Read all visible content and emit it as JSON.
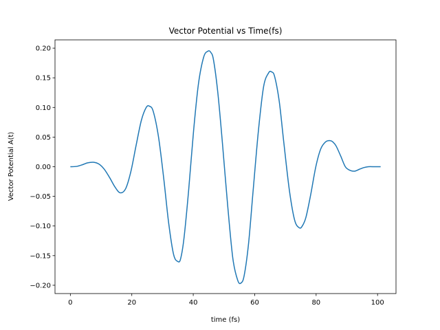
{
  "chart_data": {
    "type": "line",
    "title": "Vector Potential vs Time(fs)",
    "xlabel": "time (fs)",
    "ylabel": "Vector Potential A(t)",
    "xlim": [
      -5,
      106
    ],
    "ylim": [
      -0.214,
      0.214
    ],
    "xticks": [
      0,
      20,
      40,
      60,
      80,
      100
    ],
    "yticks": [
      -0.2,
      -0.15,
      -0.1,
      -0.05,
      0.0,
      0.05,
      0.1,
      0.15,
      0.2
    ],
    "xtick_labels": [
      "0",
      "20",
      "40",
      "60",
      "80",
      "100"
    ],
    "ytick_labels": [
      "−0.20",
      "−0.15",
      "−0.10",
      "−0.05",
      "0.00",
      "0.05",
      "0.10",
      "0.15",
      "0.20"
    ],
    "grid": false,
    "series": [
      {
        "color": "#1f77b4",
        "x": [
          0,
          2,
          4,
          5.6,
          7.5,
          9.3,
          11,
          12.8,
          14.5,
          16.2,
          18,
          19.7,
          21.4,
          23.1,
          24.7,
          25.8,
          27,
          28.7,
          30.4,
          32,
          33.6,
          35,
          35.9,
          37,
          38.5,
          40.1,
          41.7,
          43.4,
          44.8,
          45.7,
          46.6,
          48,
          49.5,
          51.2,
          52.9,
          54.5,
          55.6,
          56.6,
          58,
          59.5,
          61.2,
          62.9,
          64.5,
          65.5,
          66.5,
          68,
          69.5,
          71.3,
          73,
          74.5,
          75.5,
          76.7,
          78.2,
          79.9,
          81.5,
          83.1,
          84.6,
          85.4,
          86.5,
          88,
          89.5,
          91,
          92.5,
          94,
          95.5,
          97,
          99,
          101
        ],
        "y": [
          0.0,
          0.0005,
          0.0035,
          0.0065,
          0.0075,
          0.0045,
          -0.004,
          -0.0185,
          -0.034,
          -0.044,
          -0.037,
          -0.008,
          0.036,
          0.078,
          0.1,
          0.102,
          0.093,
          0.05,
          -0.02,
          -0.095,
          -0.148,
          -0.16,
          -0.155,
          -0.12,
          -0.04,
          0.06,
          0.14,
          0.185,
          0.195,
          0.193,
          0.18,
          0.125,
          0.04,
          -0.065,
          -0.155,
          -0.192,
          -0.196,
          -0.183,
          -0.13,
          -0.04,
          0.06,
          0.135,
          0.158,
          0.16,
          0.152,
          0.11,
          0.04,
          -0.04,
          -0.09,
          -0.103,
          -0.1,
          -0.085,
          -0.048,
          0.0,
          0.03,
          0.042,
          0.044,
          0.042,
          0.035,
          0.018,
          0.0,
          -0.006,
          -0.0075,
          -0.0045,
          -0.0015,
          0.0,
          0.0,
          0.0
        ]
      }
    ]
  }
}
